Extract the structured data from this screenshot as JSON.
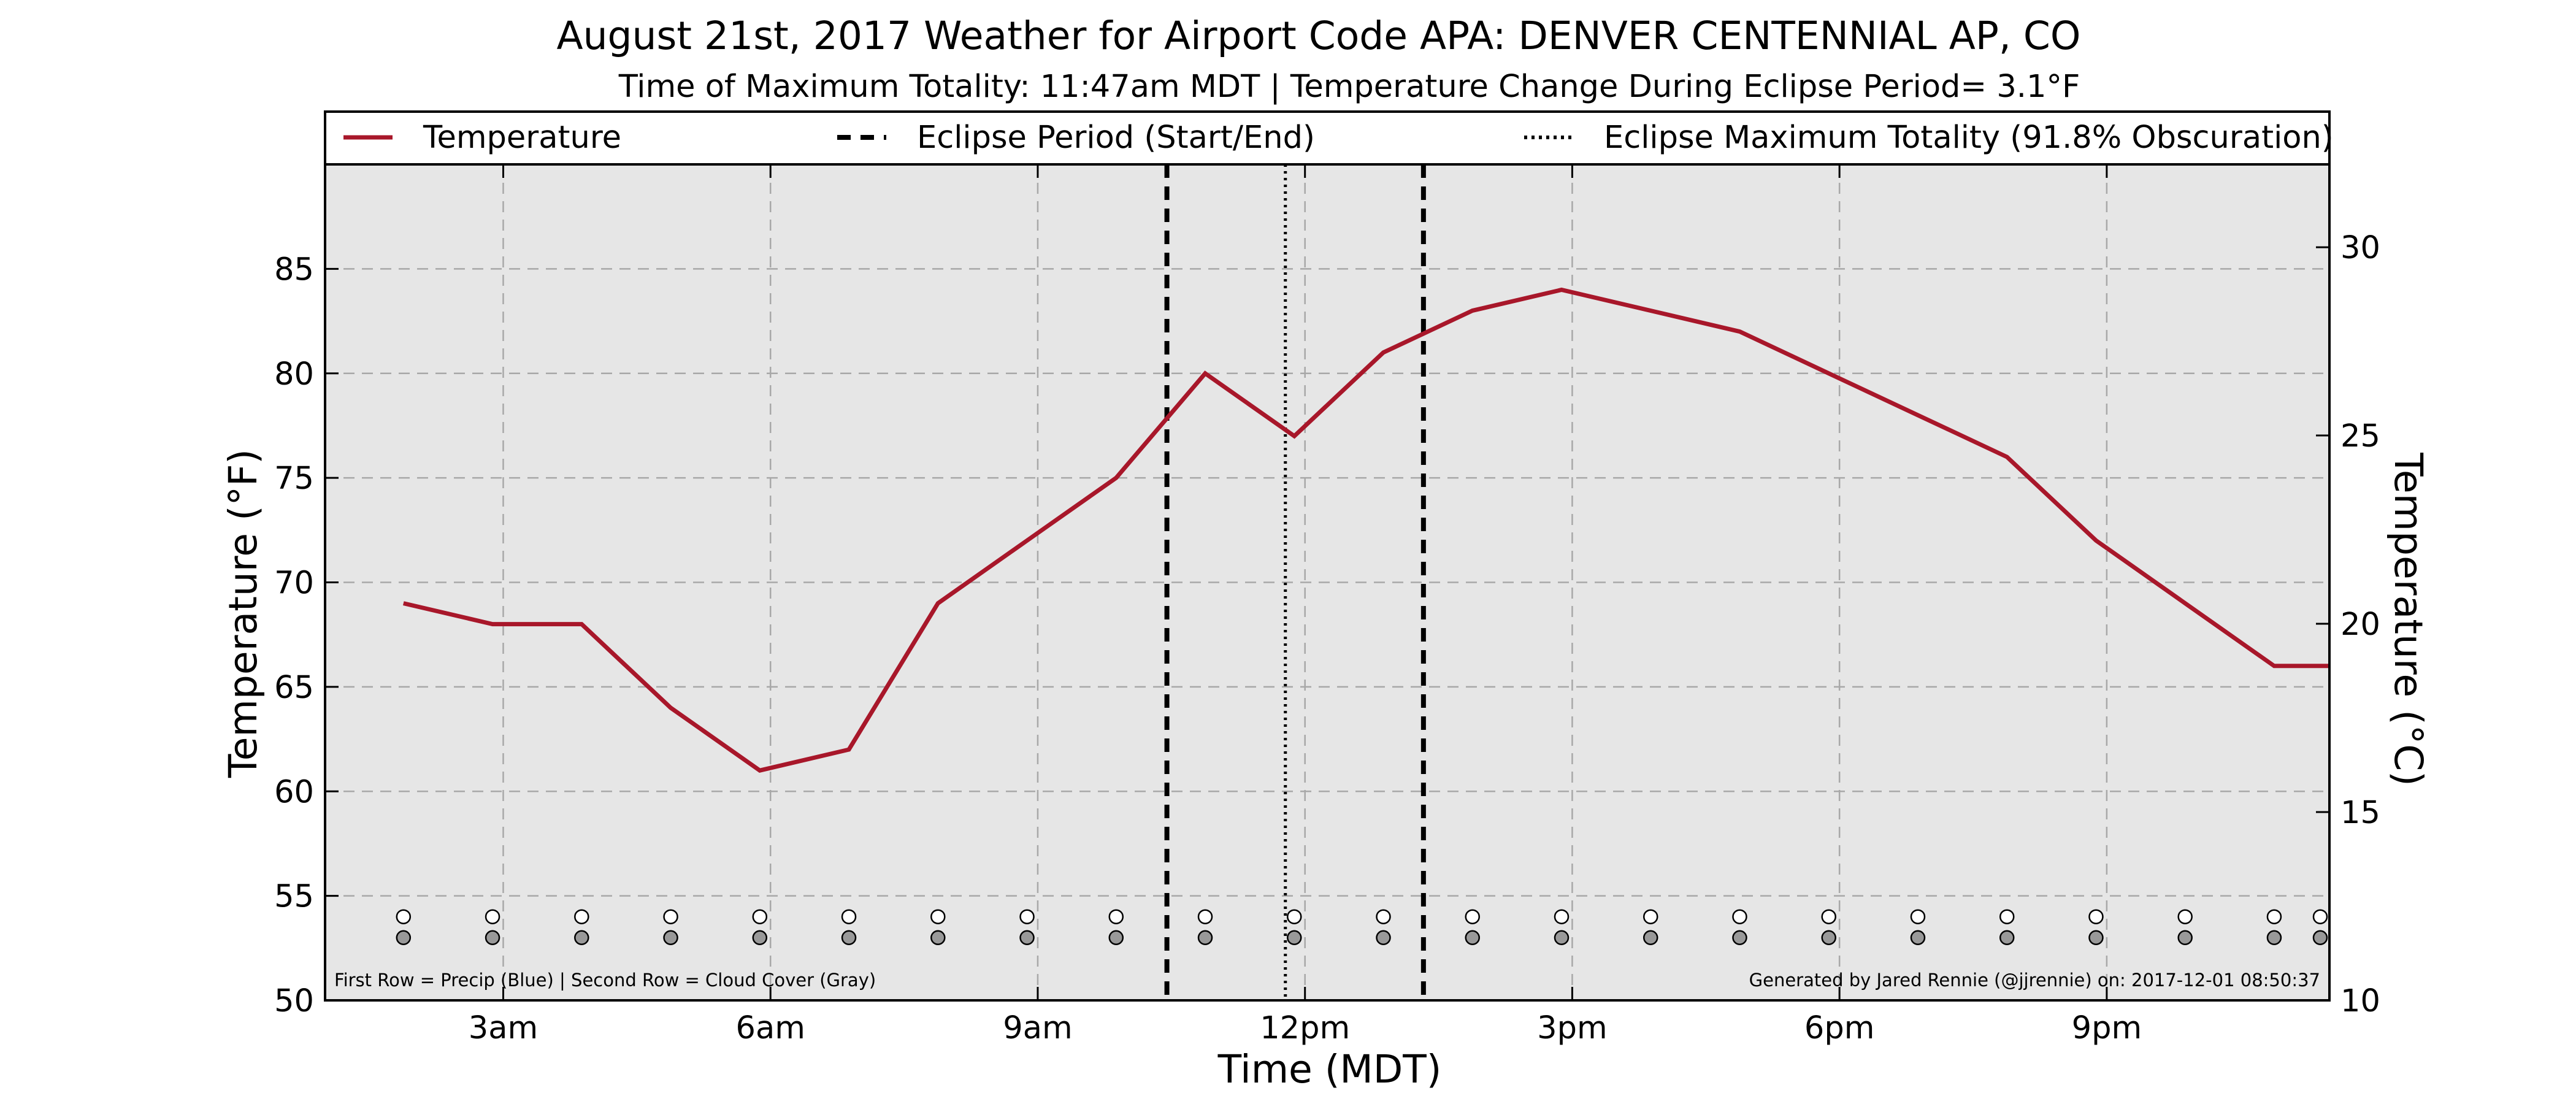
{
  "chart_data": {
    "type": "line",
    "title": "August 21st, 2017 Weather for Airport Code APA: DENVER CENTENNIAL AP, CO",
    "subtitle": "Time of Maximum Totality: 11:47am MDT | Temperature Change During Eclipse Period= 3.1°F",
    "xlabel": "Time (MDT)",
    "ylabel": "Temperature (°F)",
    "ylabel_right": "Temperature (°C)",
    "x_unit": "hours (MDT)",
    "xlim": [
      1,
      23.5
    ],
    "ylim": [
      50,
      90
    ],
    "ylim_right": [
      10,
      32.2
    ],
    "x_ticks": [
      {
        "x": 3,
        "label": "3am"
      },
      {
        "x": 6,
        "label": "6am"
      },
      {
        "x": 9,
        "label": "9am"
      },
      {
        "x": 12,
        "label": "12pm"
      },
      {
        "x": 15,
        "label": "3pm"
      },
      {
        "x": 18,
        "label": "6pm"
      },
      {
        "x": 21,
        "label": "9pm"
      }
    ],
    "y_ticks": [
      50,
      55,
      60,
      65,
      70,
      75,
      80,
      85
    ],
    "y_ticks_right": [
      10,
      15,
      20,
      25,
      30
    ],
    "grid": true,
    "legend_position": "top",
    "legend": [
      {
        "label": "Temperature",
        "style": "solid",
        "color": "#a8172a"
      },
      {
        "label": "Eclipse Period (Start/End)",
        "style": "dashed",
        "color": "#000000"
      },
      {
        "label": "Eclipse Maximum Totality (91.8% Obscuration)",
        "style": "dotted",
        "color": "#000000"
      }
    ],
    "series": [
      {
        "name": "Temperature",
        "color": "#a8172a",
        "x": [
          1.88,
          2.88,
          3.88,
          4.88,
          5.88,
          6.88,
          7.88,
          8.88,
          9.88,
          10.88,
          11.88,
          12.88,
          13.88,
          14.88,
          15.88,
          16.88,
          17.88,
          18.88,
          19.88,
          20.88,
          21.88,
          22.88,
          23.88
        ],
        "y": [
          69,
          68,
          68,
          64,
          61,
          62,
          69,
          72,
          75,
          80,
          77,
          81,
          83,
          84,
          83,
          82,
          80,
          78,
          76,
          72,
          69,
          66,
          66
        ]
      }
    ],
    "eclipse_start": 10.45,
    "eclipse_end": 13.33,
    "eclipse_max": 11.78,
    "indicator_rows": {
      "x": [
        1.88,
        2.88,
        3.88,
        4.88,
        5.88,
        6.88,
        7.88,
        8.88,
        9.88,
        10.88,
        11.88,
        12.88,
        13.88,
        14.88,
        15.88,
        16.88,
        17.88,
        18.88,
        19.88,
        20.88,
        21.88,
        22.88,
        23.88
      ],
      "precip_y": 54,
      "cloud_y": 53,
      "precip_color": "#ffffff",
      "cloud_color": "#999999"
    },
    "footnote_left": "First Row = Precip (Blue) | Second Row = Cloud Cover (Gray)",
    "footnote_right": "Generated by Jared Rennie (@jjrennie) on: 2017-12-01 08:50:37",
    "plot_background": "#e6e6e6"
  }
}
